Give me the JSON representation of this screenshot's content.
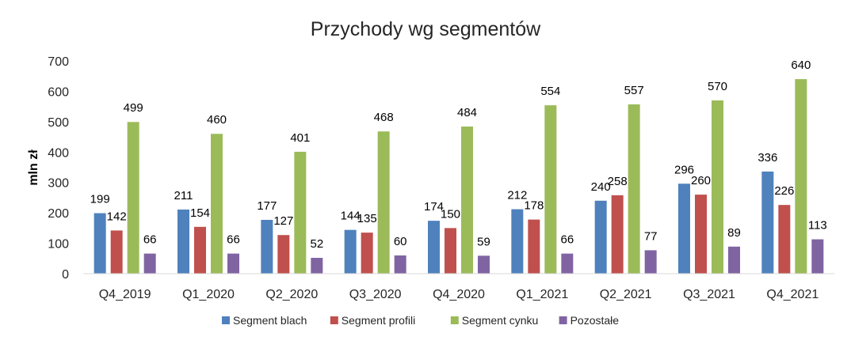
{
  "chart_data": {
    "type": "bar",
    "title": "Przychody wg segmentów",
    "ylabel": "mln zł",
    "xlabel": "",
    "ylim": [
      0,
      700
    ],
    "yticks": [
      0,
      100,
      200,
      300,
      400,
      500,
      600,
      700
    ],
    "grid": false,
    "legend_position": "bottom",
    "categories": [
      "Q4_2019",
      "Q1_2020",
      "Q2_2020",
      "Q3_2020",
      "Q4_2020",
      "Q1_2021",
      "Q2_2021",
      "Q3_2021",
      "Q4_2021"
    ],
    "series": [
      {
        "name": "Segment blach",
        "color": "#4F81BD",
        "values": [
          199,
          211,
          177,
          144,
          174,
          212,
          240,
          296,
          336
        ]
      },
      {
        "name": "Segment profili",
        "color": "#C0504D",
        "values": [
          142,
          154,
          127,
          135,
          150,
          178,
          258,
          260,
          226
        ]
      },
      {
        "name": "Segment cynku",
        "color": "#9BBB59",
        "values": [
          499,
          460,
          401,
          468,
          484,
          554,
          557,
          570,
          640
        ]
      },
      {
        "name": "Pozostałe",
        "color": "#8064A2",
        "values": [
          66,
          66,
          52,
          60,
          59,
          66,
          77,
          89,
          113
        ]
      }
    ]
  }
}
